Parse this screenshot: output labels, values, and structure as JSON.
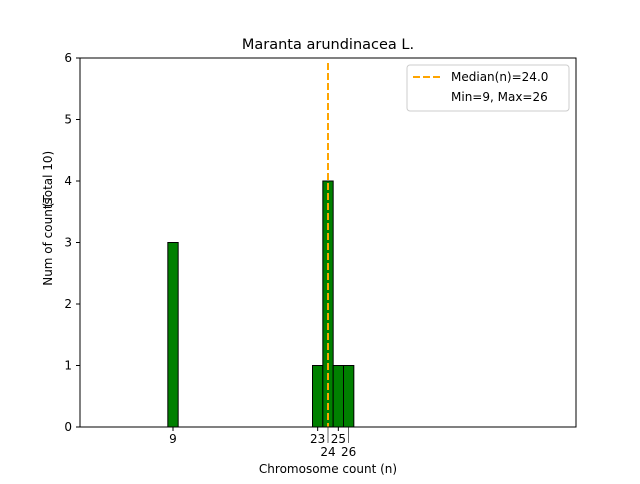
{
  "chart_data": {
    "type": "bar",
    "title": "Maranta arundinacea L.",
    "xlabel": "Chromosome count (n)",
    "ylabel": "Num of counts",
    "ylabel_total": "(Total 10)",
    "xlim": [
      0,
      48
    ],
    "ylim": [
      0,
      6
    ],
    "yticks": [
      0,
      1,
      2,
      3,
      4,
      5,
      6
    ],
    "xticks": [
      9,
      23,
      24,
      25,
      26
    ],
    "bars": [
      {
        "x": 9,
        "count": 3
      },
      {
        "x": 23,
        "count": 1
      },
      {
        "x": 24,
        "count": 4
      },
      {
        "x": 25,
        "count": 1
      },
      {
        "x": 26,
        "count": 1
      }
    ],
    "zero_bin_range": [
      1.5,
      29.5
    ],
    "bar_color": "#008000",
    "median": 24.0,
    "median_color": "#FFA500",
    "legend": {
      "placement": "top-right",
      "entries": [
        "Median(n)=24.0",
        "Min=9, Max=26"
      ]
    },
    "grid": false
  }
}
